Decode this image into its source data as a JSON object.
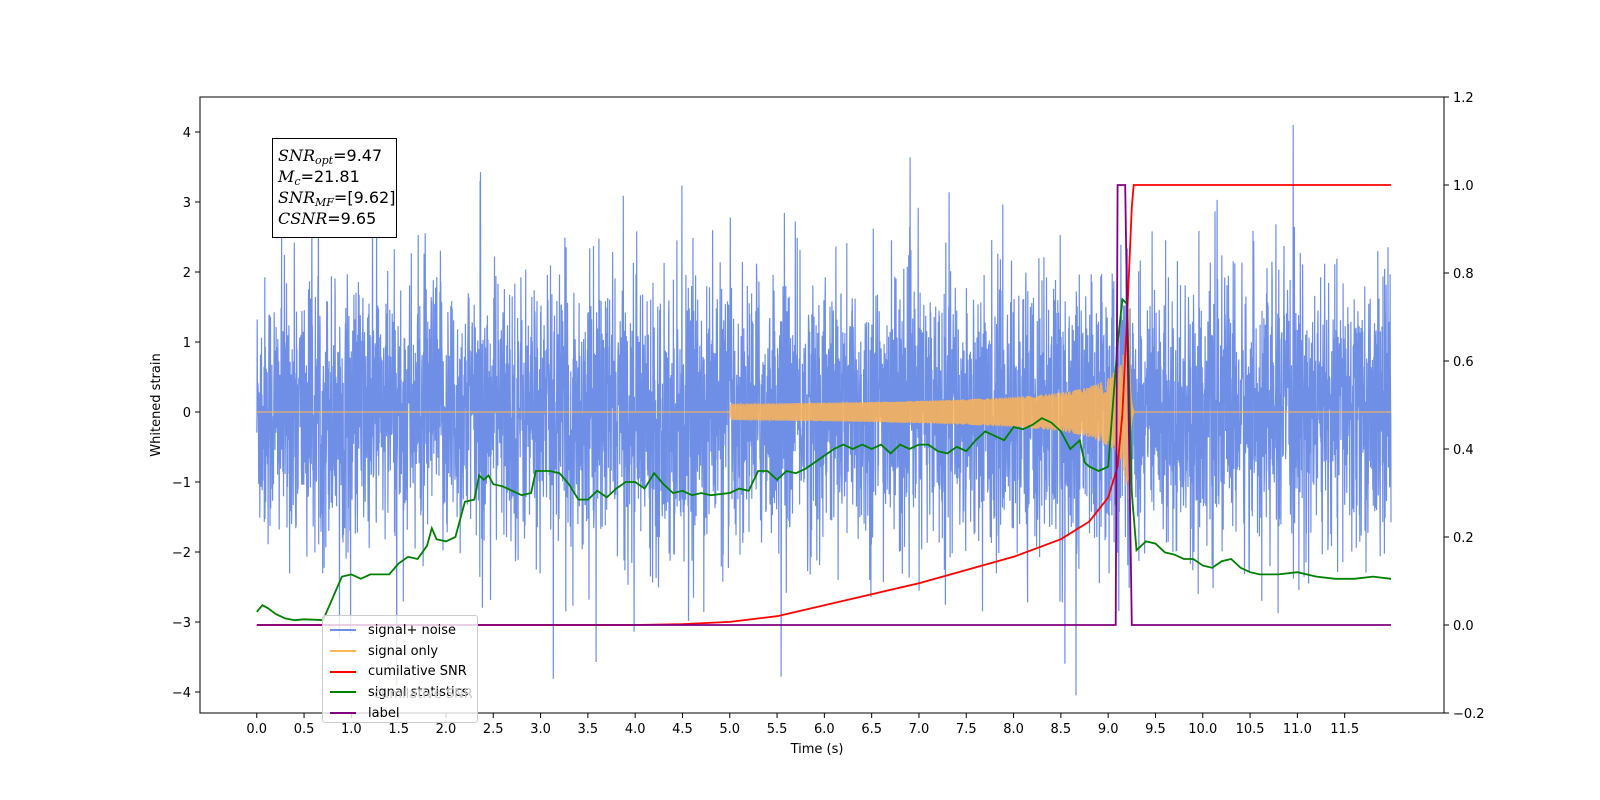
{
  "chart_data": {
    "type": "line",
    "xlabel": "Time (s)",
    "ylabel": "Whitened strain",
    "xlim": [
      -0.6,
      12.55
    ],
    "ylim_left": [
      -4.3,
      4.5
    ],
    "ylim_right": [
      -0.2,
      1.2
    ],
    "x_ticks": [
      "0.0",
      "0.5",
      "1.0",
      "1.5",
      "2.0",
      "2.5",
      "3.0",
      "3.5",
      "4.0",
      "4.5",
      "5.0",
      "5.5",
      "6.0",
      "6.5",
      "7.0",
      "7.5",
      "8.0",
      "8.5",
      "9.0",
      "9.5",
      "10.0",
      "10.5",
      "11.0",
      "11.5"
    ],
    "y_ticks_left": [
      "4",
      "3",
      "2",
      "1",
      "0",
      "−1",
      "−2",
      "−3",
      "−4"
    ],
    "y_ticks_right": [
      "1.2",
      "1.0",
      "0.8",
      "0.6",
      "0.4",
      "0.2",
      "0.0",
      "−0.2"
    ],
    "legend": {
      "position": "lower-left",
      "entries": [
        "signal+ noise",
        "signal only",
        "cumilative SNR",
        "signal statistics",
        "label"
      ],
      "ghost_text": "cumilative SNR"
    },
    "colors": {
      "signal_noise": "#6f8fe6",
      "signal_only": "#ffb554",
      "cumulative_snr": "#ff0000",
      "signal_statistics": "#008000",
      "label": "#800080"
    },
    "annotation": {
      "snr_opt_label": "SNR",
      "snr_opt_sub": "opt",
      "snr_opt_value": "=9.47",
      "mc_label": "M",
      "mc_sub": "c",
      "mc_value": "=21.81",
      "snr_mf_label": "SNR",
      "snr_mf_sub": "MF",
      "snr_mf_value": "=[9.62]",
      "csnr_label": "CSNR",
      "csnr_value": "=9.65"
    },
    "series": [
      {
        "name": "signal+ noise",
        "axis": "left",
        "description_stats": {
          "x_range": [
            0.0,
            11.99
          ],
          "min": -3.9,
          "max": 4.1
        }
      },
      {
        "name": "signal only",
        "axis": "left",
        "chirp": {
          "start": 5.0,
          "merger": 9.22,
          "ringdown_end": 9.27,
          "peak_amplitude": 1.7
        }
      },
      {
        "name": "cumilative SNR",
        "axis": "right",
        "points": [
          [
            0.0,
            0.0
          ],
          [
            4.0,
            0.0
          ],
          [
            4.5,
            0.002
          ],
          [
            5.0,
            0.007
          ],
          [
            5.5,
            0.02
          ],
          [
            6.0,
            0.045
          ],
          [
            6.5,
            0.07
          ],
          [
            7.0,
            0.095
          ],
          [
            7.5,
            0.125
          ],
          [
            8.0,
            0.155
          ],
          [
            8.5,
            0.195
          ],
          [
            8.8,
            0.235
          ],
          [
            9.0,
            0.29
          ],
          [
            9.1,
            0.36
          ],
          [
            9.15,
            0.48
          ],
          [
            9.2,
            0.7
          ],
          [
            9.25,
            0.95
          ],
          [
            9.27,
            1.0
          ],
          [
            11.99,
            1.0
          ]
        ]
      },
      {
        "name": "signal statistics",
        "axis": "right",
        "points": [
          [
            0.0,
            0.03
          ],
          [
            0.06,
            0.045
          ],
          [
            0.12,
            0.038
          ],
          [
            0.2,
            0.025
          ],
          [
            0.3,
            0.015
          ],
          [
            0.4,
            0.011
          ],
          [
            0.5,
            0.013
          ],
          [
            0.6,
            0.012
          ],
          [
            0.7,
            0.011
          ],
          [
            0.8,
            0.06
          ],
          [
            0.9,
            0.11
          ],
          [
            1.0,
            0.115
          ],
          [
            1.1,
            0.105
          ],
          [
            1.2,
            0.115
          ],
          [
            1.3,
            0.115
          ],
          [
            1.4,
            0.115
          ],
          [
            1.5,
            0.14
          ],
          [
            1.6,
            0.155
          ],
          [
            1.7,
            0.15
          ],
          [
            1.8,
            0.18
          ],
          [
            1.85,
            0.22
          ],
          [
            1.9,
            0.195
          ],
          [
            2.0,
            0.19
          ],
          [
            2.1,
            0.2
          ],
          [
            2.2,
            0.28
          ],
          [
            2.3,
            0.285
          ],
          [
            2.35,
            0.34
          ],
          [
            2.4,
            0.33
          ],
          [
            2.45,
            0.34
          ],
          [
            2.5,
            0.32
          ],
          [
            2.6,
            0.315
          ],
          [
            2.7,
            0.305
          ],
          [
            2.8,
            0.295
          ],
          [
            2.9,
            0.3
          ],
          [
            2.95,
            0.35
          ],
          [
            3.0,
            0.35
          ],
          [
            3.1,
            0.35
          ],
          [
            3.2,
            0.345
          ],
          [
            3.3,
            0.32
          ],
          [
            3.4,
            0.285
          ],
          [
            3.5,
            0.285
          ],
          [
            3.6,
            0.305
          ],
          [
            3.7,
            0.29
          ],
          [
            3.8,
            0.31
          ],
          [
            3.9,
            0.325
          ],
          [
            4.0,
            0.325
          ],
          [
            4.1,
            0.31
          ],
          [
            4.2,
            0.345
          ],
          [
            4.3,
            0.32
          ],
          [
            4.4,
            0.3
          ],
          [
            4.5,
            0.305
          ],
          [
            4.6,
            0.295
          ],
          [
            4.7,
            0.3
          ],
          [
            4.8,
            0.295
          ],
          [
            5.0,
            0.3
          ],
          [
            5.1,
            0.31
          ],
          [
            5.2,
            0.305
          ],
          [
            5.3,
            0.35
          ],
          [
            5.4,
            0.35
          ],
          [
            5.5,
            0.33
          ],
          [
            5.6,
            0.35
          ],
          [
            5.7,
            0.345
          ],
          [
            5.8,
            0.355
          ],
          [
            5.9,
            0.37
          ],
          [
            6.0,
            0.385
          ],
          [
            6.1,
            0.4
          ],
          [
            6.2,
            0.41
          ],
          [
            6.3,
            0.4
          ],
          [
            6.4,
            0.41
          ],
          [
            6.5,
            0.4
          ],
          [
            6.6,
            0.41
          ],
          [
            6.7,
            0.39
          ],
          [
            6.8,
            0.41
          ],
          [
            6.9,
            0.4
          ],
          [
            7.0,
            0.41
          ],
          [
            7.1,
            0.41
          ],
          [
            7.2,
            0.395
          ],
          [
            7.3,
            0.39
          ],
          [
            7.4,
            0.405
          ],
          [
            7.5,
            0.395
          ],
          [
            7.6,
            0.42
          ],
          [
            7.7,
            0.44
          ],
          [
            7.8,
            0.43
          ],
          [
            7.9,
            0.42
          ],
          [
            8.0,
            0.45
          ],
          [
            8.1,
            0.445
          ],
          [
            8.2,
            0.455
          ],
          [
            8.3,
            0.47
          ],
          [
            8.4,
            0.46
          ],
          [
            8.5,
            0.44
          ],
          [
            8.6,
            0.4
          ],
          [
            8.7,
            0.42
          ],
          [
            8.75,
            0.37
          ],
          [
            8.8,
            0.36
          ],
          [
            8.9,
            0.35
          ],
          [
            9.0,
            0.36
          ],
          [
            9.1,
            0.64
          ],
          [
            9.15,
            0.74
          ],
          [
            9.2,
            0.73
          ],
          [
            9.25,
            0.3
          ],
          [
            9.3,
            0.17
          ],
          [
            9.4,
            0.19
          ],
          [
            9.5,
            0.185
          ],
          [
            9.6,
            0.165
          ],
          [
            9.7,
            0.16
          ],
          [
            9.8,
            0.15
          ],
          [
            9.9,
            0.15
          ],
          [
            10.0,
            0.135
          ],
          [
            10.1,
            0.13
          ],
          [
            10.2,
            0.145
          ],
          [
            10.3,
            0.15
          ],
          [
            10.4,
            0.13
          ],
          [
            10.5,
            0.12
          ],
          [
            10.6,
            0.115
          ],
          [
            10.8,
            0.115
          ],
          [
            11.0,
            0.12
          ],
          [
            11.2,
            0.11
          ],
          [
            11.4,
            0.105
          ],
          [
            11.6,
            0.105
          ],
          [
            11.8,
            0.11
          ],
          [
            11.99,
            0.105
          ]
        ]
      },
      {
        "name": "label",
        "axis": "right",
        "points": [
          [
            0.0,
            0.0
          ],
          [
            9.08,
            0.0
          ],
          [
            9.1,
            1.0
          ],
          [
            9.18,
            1.0
          ],
          [
            9.25,
            0.0
          ],
          [
            11.99,
            0.0
          ]
        ]
      }
    ]
  }
}
